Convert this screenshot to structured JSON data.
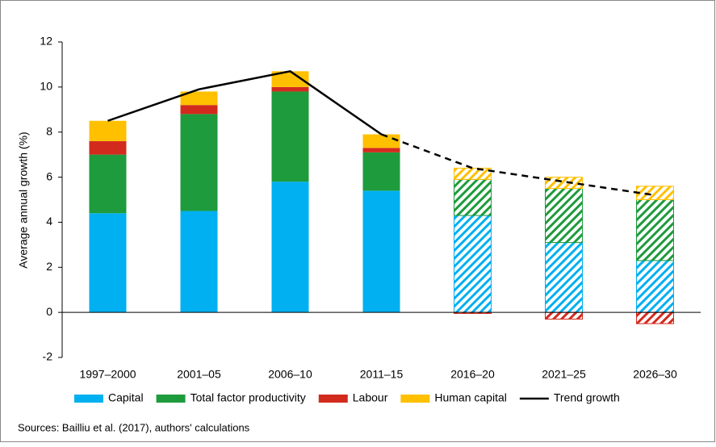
{
  "chart_data": {
    "type": "stacked-bar",
    "y_label": "Average annual growth (%)",
    "source": "Sources: Bailliu et al. (2017), authors' calculations",
    "categories": [
      "1997–2000",
      "2001–05",
      "2006–10",
      "2011–15",
      "2016–20",
      "2021–25",
      "2026–30"
    ],
    "projected": [
      false,
      false,
      false,
      false,
      true,
      true,
      true
    ],
    "series": [
      {
        "name": "Capital",
        "color": "#00b0f0",
        "values": [
          4.4,
          4.5,
          5.8,
          5.4,
          4.3,
          3.1,
          2.3
        ]
      },
      {
        "name": "Total factor productivity",
        "color": "#1e9b3c",
        "values": [
          2.6,
          4.3,
          4.0,
          1.7,
          1.6,
          2.4,
          2.7
        ]
      },
      {
        "name": "Labour",
        "color": "#d22b1e",
        "values": [
          0.6,
          0.4,
          0.2,
          0.2,
          -0.05,
          -0.3,
          -0.5
        ]
      },
      {
        "name": "Human capital",
        "color": "#ffc000",
        "values": [
          0.9,
          0.6,
          0.7,
          0.6,
          0.5,
          0.5,
          0.6
        ]
      }
    ],
    "trend": {
      "name": "Trend growth",
      "color": "#000000",
      "values": [
        8.5,
        9.9,
        10.7,
        7.9,
        6.4,
        5.8,
        5.2
      ]
    },
    "ylim": [
      -2,
      12
    ],
    "yticks": [
      -2,
      0,
      2,
      4,
      6,
      8,
      10,
      12
    ]
  }
}
